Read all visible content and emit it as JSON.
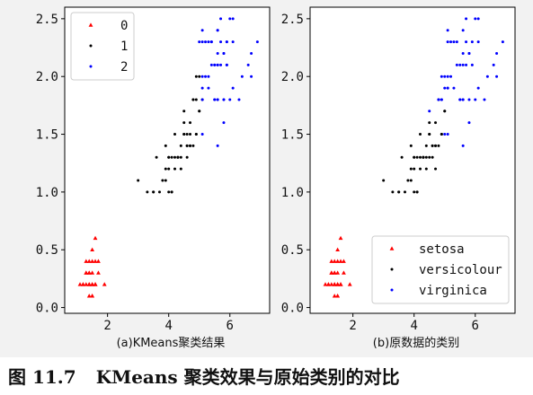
{
  "figure_caption": {
    "label": "图 11.7",
    "text": "KMeans 聚类效果与原始类别的对比"
  },
  "chart_data": [
    {
      "type": "scatter",
      "panel_id": "a",
      "caption": "(a)KMeans聚类结果",
      "xlim": [
        0.6,
        7.3
      ],
      "ylim": [
        -0.05,
        2.6
      ],
      "xticks": [
        2,
        4,
        6
      ],
      "yticks": [
        0.0,
        0.5,
        1.0,
        1.5,
        2.0,
        2.5
      ],
      "grid": false,
      "legend_position": "top-left",
      "series": [
        {
          "name": "0",
          "color": "#ff0000",
          "marker": "triangle",
          "x": [
            1.1,
            1.2,
            1.3,
            1.4,
            1.5,
            1.6,
            1.3,
            1.4,
            1.5,
            1.7,
            1.2,
            1.4,
            1.5,
            1.6,
            1.4,
            1.5,
            1.3,
            1.5,
            1.7,
            1.4,
            1.6,
            1.5,
            1.4,
            1.3,
            1.5,
            1.6,
            1.9,
            1.6,
            1.4,
            1.5
          ],
          "y": [
            0.2,
            0.2,
            0.2,
            0.2,
            0.2,
            0.2,
            0.3,
            0.3,
            0.3,
            0.3,
            0.2,
            0.1,
            0.1,
            0.2,
            0.4,
            0.4,
            0.4,
            0.2,
            0.4,
            0.2,
            0.6,
            0.5,
            0.2,
            0.3,
            0.1,
            0.2,
            0.2,
            0.4,
            0.3,
            0.2
          ]
        },
        {
          "name": "1",
          "color": "#000000",
          "marker": "point",
          "x": [
            3.0,
            3.3,
            3.5,
            3.5,
            3.6,
            3.7,
            3.8,
            3.9,
            3.9,
            4.0,
            4.0,
            4.0,
            4.1,
            4.1,
            4.2,
            4.2,
            4.3,
            4.3,
            4.4,
            4.4,
            4.5,
            4.5,
            4.5,
            4.6,
            4.6,
            4.7,
            4.7,
            4.7,
            4.8,
            4.8,
            4.9,
            4.9,
            5.0,
            5.0,
            4.5,
            4.6,
            4.7,
            4.8,
            4.9,
            4.9,
            5.0,
            5.1,
            4.2,
            4.0,
            4.4,
            3.9,
            4.1,
            4.6,
            4.3
          ],
          "y": [
            1.1,
            1.0,
            1.0,
            1.0,
            1.3,
            1.0,
            1.1,
            1.1,
            1.4,
            1.0,
            1.3,
            1.2,
            1.0,
            1.3,
            1.3,
            1.5,
            1.3,
            1.3,
            1.3,
            1.4,
            1.5,
            1.5,
            1.6,
            1.3,
            1.4,
            1.4,
            1.4,
            1.6,
            1.8,
            1.4,
            1.5,
            1.5,
            1.7,
            1.7,
            1.7,
            1.5,
            1.5,
            1.8,
            1.8,
            2.0,
            2.0,
            1.8,
            1.2,
            1.3,
            1.2,
            1.2,
            1.0,
            1.4,
            1.3
          ]
        },
        {
          "name": "2",
          "color": "#0000ff",
          "marker": "point",
          "x": [
            5.0,
            5.1,
            5.1,
            5.1,
            5.2,
            5.2,
            5.3,
            5.3,
            5.4,
            5.4,
            5.5,
            5.5,
            5.5,
            5.6,
            5.6,
            5.6,
            5.6,
            5.6,
            5.7,
            5.7,
            5.8,
            5.8,
            5.8,
            5.9,
            5.9,
            6.0,
            6.0,
            6.1,
            6.1,
            6.1,
            6.3,
            6.4,
            6.6,
            6.7,
            6.7,
            6.9,
            5.6,
            5.8,
            5.1,
            5.7,
            5.1,
            5.3,
            5.5,
            5.6,
            5.1,
            5.4,
            5.8,
            5.9,
            5.6,
            5.9
          ],
          "y": [
            2.3,
            2.4,
            2.3,
            2.0,
            2.3,
            2.0,
            2.3,
            1.9,
            2.3,
            2.1,
            2.1,
            1.8,
            1.8,
            2.1,
            2.4,
            2.2,
            1.4,
            1.8,
            2.3,
            2.5,
            2.2,
            2.2,
            1.8,
            2.3,
            2.1,
            1.8,
            2.5,
            2.3,
            1.9,
            2.5,
            1.8,
            2.0,
            2.1,
            2.2,
            2.0,
            2.3,
            1.8,
            1.6,
            1.9,
            2.1,
            1.5,
            2.0,
            2.1,
            2.4,
            1.8,
            2.3,
            1.8,
            2.3,
            2.1,
            2.1
          ]
        }
      ]
    },
    {
      "type": "scatter",
      "panel_id": "b",
      "caption": "(b)原数据的类别",
      "xlim": [
        0.6,
        7.3
      ],
      "ylim": [
        -0.05,
        2.6
      ],
      "xticks": [
        2,
        4,
        6
      ],
      "yticks": [
        0.0,
        0.5,
        1.0,
        1.5,
        2.0,
        2.5
      ],
      "grid": false,
      "legend_position": "bottom-right",
      "series": [
        {
          "name": "setosa",
          "color": "#ff0000",
          "marker": "triangle",
          "x": [
            1.1,
            1.2,
            1.3,
            1.4,
            1.5,
            1.6,
            1.3,
            1.4,
            1.5,
            1.7,
            1.2,
            1.4,
            1.5,
            1.6,
            1.4,
            1.5,
            1.3,
            1.5,
            1.7,
            1.4,
            1.6,
            1.5,
            1.4,
            1.3,
            1.5,
            1.6,
            1.9,
            1.6,
            1.4,
            1.5
          ],
          "y": [
            0.2,
            0.2,
            0.2,
            0.2,
            0.2,
            0.2,
            0.3,
            0.3,
            0.3,
            0.3,
            0.2,
            0.1,
            0.1,
            0.2,
            0.4,
            0.4,
            0.4,
            0.2,
            0.4,
            0.2,
            0.6,
            0.5,
            0.2,
            0.3,
            0.1,
            0.2,
            0.2,
            0.4,
            0.3,
            0.2
          ]
        },
        {
          "name": "versicolour",
          "color": "#000000",
          "marker": "point",
          "x": [
            3.0,
            3.3,
            3.5,
            3.5,
            3.6,
            3.7,
            3.8,
            3.9,
            3.9,
            4.0,
            4.0,
            4.0,
            4.1,
            4.1,
            4.2,
            4.2,
            4.3,
            4.3,
            4.4,
            4.4,
            4.5,
            4.5,
            4.5,
            4.6,
            4.6,
            4.7,
            4.7,
            4.7,
            4.8,
            4.8,
            4.9,
            4.9,
            5.0,
            5.0,
            4.2,
            4.0,
            4.4,
            3.9,
            4.1,
            4.6,
            4.3,
            4.5,
            4.7
          ],
          "y": [
            1.1,
            1.0,
            1.0,
            1.0,
            1.3,
            1.0,
            1.1,
            1.1,
            1.4,
            1.0,
            1.3,
            1.2,
            1.0,
            1.3,
            1.3,
            1.5,
            1.3,
            1.3,
            1.3,
            1.4,
            1.5,
            1.5,
            1.6,
            1.3,
            1.4,
            1.4,
            1.4,
            1.6,
            1.8,
            1.4,
            1.5,
            1.5,
            1.7,
            1.7,
            1.2,
            1.3,
            1.2,
            1.2,
            1.0,
            1.4,
            1.3,
            1.3,
            1.2
          ]
        },
        {
          "name": "virginica",
          "color": "#0000ff",
          "marker": "point",
          "x": [
            4.5,
            4.8,
            4.9,
            4.9,
            5.0,
            5.1,
            5.1,
            5.1,
            5.1,
            5.2,
            5.2,
            5.3,
            5.3,
            5.4,
            5.4,
            5.5,
            5.5,
            5.5,
            5.6,
            5.6,
            5.6,
            5.6,
            5.6,
            5.7,
            5.7,
            5.8,
            5.8,
            5.8,
            5.9,
            5.9,
            6.0,
            6.0,
            6.1,
            6.1,
            6.1,
            6.3,
            6.4,
            6.6,
            6.7,
            6.7,
            6.9,
            5.0,
            5.1,
            4.8,
            5.0,
            4.9,
            5.6,
            5.8,
            5.1,
            5.7
          ],
          "y": [
            1.7,
            1.8,
            1.8,
            2.0,
            2.0,
            2.4,
            2.3,
            2.0,
            1.5,
            2.3,
            2.0,
            2.3,
            1.9,
            2.3,
            2.1,
            2.1,
            1.8,
            1.8,
            2.1,
            2.4,
            2.2,
            1.4,
            1.8,
            2.3,
            2.5,
            2.2,
            2.2,
            1.8,
            2.3,
            2.1,
            1.8,
            2.5,
            2.3,
            1.9,
            2.5,
            1.8,
            2.0,
            2.1,
            2.2,
            2.0,
            2.3,
            1.5,
            1.9,
            1.8,
            1.9,
            1.8,
            1.8,
            1.6,
            1.9,
            2.1
          ]
        }
      ]
    }
  ]
}
